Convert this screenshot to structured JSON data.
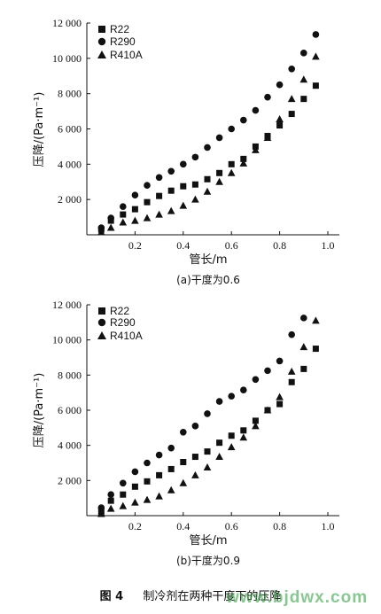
{
  "figure_caption": {
    "number": "图 4",
    "text": "制冷剂在两种干度下的压降"
  },
  "watermark": "www.bjdwx.com",
  "chart_data": [
    {
      "type": "scatter",
      "caption": "(a)干度为0.6",
      "xlabel": "管长/m",
      "ylabel": "压降/(Pa·m⁻¹)",
      "xlim": [
        0,
        1.0
      ],
      "ylim": [
        0,
        12000
      ],
      "xticks": [
        "0.2",
        "0.4",
        "0.6",
        "0.8",
        "1.0"
      ],
      "yticks": [
        "2 000",
        "4 000",
        "6 000",
        "8 000",
        "10 000",
        "12 000"
      ],
      "grid": false,
      "legend_position": "top-left",
      "series": [
        {
          "name": "R22",
          "marker": "square",
          "x": [
            0.06,
            0.1,
            0.15,
            0.2,
            0.25,
            0.3,
            0.35,
            0.4,
            0.45,
            0.5,
            0.55,
            0.6,
            0.65,
            0.7,
            0.75,
            0.8,
            0.85,
            0.9,
            0.95
          ],
          "y": [
            300,
            800,
            1150,
            1450,
            1850,
            2200,
            2500,
            2750,
            2850,
            3150,
            3500,
            4000,
            4300,
            5000,
            5600,
            6200,
            6850,
            7700,
            8450
          ]
        },
        {
          "name": "R290",
          "marker": "circle",
          "x": [
            0.06,
            0.1,
            0.15,
            0.2,
            0.25,
            0.3,
            0.35,
            0.4,
            0.45,
            0.5,
            0.55,
            0.6,
            0.65,
            0.7,
            0.75,
            0.8,
            0.85,
            0.9,
            0.95
          ],
          "y": [
            400,
            950,
            1600,
            2250,
            2800,
            3250,
            3600,
            4000,
            4400,
            4950,
            5500,
            6000,
            6500,
            7050,
            7800,
            8500,
            9400,
            10300,
            11350
          ]
        },
        {
          "name": "R410A",
          "marker": "triangle",
          "x": [
            0.06,
            0.1,
            0.15,
            0.2,
            0.25,
            0.3,
            0.35,
            0.4,
            0.45,
            0.5,
            0.55,
            0.6,
            0.65,
            0.7,
            0.75,
            0.8,
            0.85,
            0.9,
            0.95
          ],
          "y": [
            150,
            400,
            700,
            800,
            950,
            1150,
            1350,
            1650,
            2000,
            2450,
            3000,
            3500,
            4050,
            4800,
            5500,
            6550,
            7700,
            8800,
            10100
          ]
        }
      ]
    },
    {
      "type": "scatter",
      "caption": "(b)干度为0.9",
      "xlabel": "管长/m",
      "ylabel": "压降/(Pa·m⁻¹)",
      "xlim": [
        0,
        1.0
      ],
      "ylim": [
        0,
        12000
      ],
      "xticks": [
        "0.2",
        "0.4",
        "0.6",
        "0.8",
        "1.0"
      ],
      "yticks": [
        "2 000",
        "4 000",
        "6 000",
        "8 000",
        "10 000",
        "12 000"
      ],
      "grid": false,
      "legend_position": "top-left",
      "series": [
        {
          "name": "R22",
          "marker": "square",
          "x": [
            0.06,
            0.1,
            0.15,
            0.2,
            0.25,
            0.3,
            0.35,
            0.4,
            0.45,
            0.5,
            0.55,
            0.6,
            0.65,
            0.7,
            0.75,
            0.8,
            0.85,
            0.9,
            0.95
          ],
          "y": [
            200,
            850,
            1200,
            1650,
            1950,
            2300,
            2650,
            3050,
            3350,
            3650,
            4150,
            4550,
            4850,
            5400,
            6000,
            6350,
            7600,
            8350,
            9500
          ]
        },
        {
          "name": "R290",
          "marker": "circle",
          "x": [
            0.06,
            0.1,
            0.15,
            0.2,
            0.25,
            0.3,
            0.35,
            0.4,
            0.45,
            0.5,
            0.55,
            0.6,
            0.65,
            0.7,
            0.75,
            0.8,
            0.85,
            0.9,
            0.95
          ],
          "y": [
            450,
            1200,
            1850,
            2500,
            3000,
            3450,
            3850,
            4750,
            5100,
            5800,
            6500,
            6800,
            7150,
            7750,
            8250,
            8800,
            10300,
            11250,
            null
          ]
        },
        {
          "name": "R410A",
          "marker": "triangle",
          "x": [
            0.06,
            0.1,
            0.15,
            0.2,
            0.25,
            0.3,
            0.35,
            0.4,
            0.45,
            0.5,
            0.55,
            0.6,
            0.65,
            0.7,
            0.75,
            0.8,
            0.85,
            0.9,
            0.95
          ],
          "y": [
            100,
            400,
            550,
            750,
            900,
            1100,
            1450,
            1850,
            2300,
            2750,
            3350,
            3900,
            4450,
            5100,
            6000,
            6750,
            8200,
            9600,
            11100
          ]
        }
      ]
    }
  ]
}
